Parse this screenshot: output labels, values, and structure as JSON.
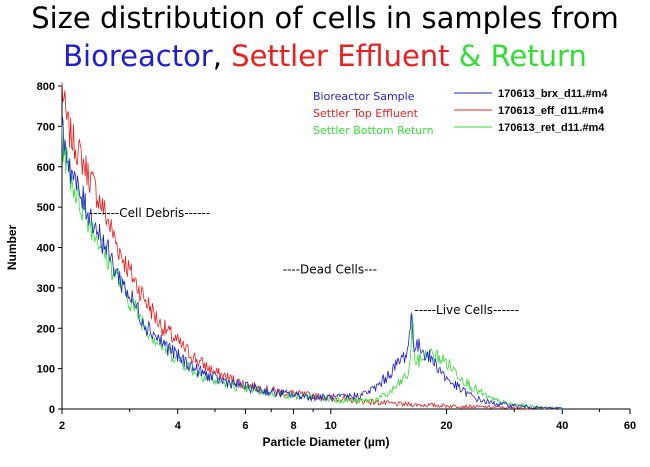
{
  "title": {
    "line1": "Size distribution of cells in samples from",
    "part_bioreactor": "Bioreactor",
    "sep1": ", ",
    "part_effluent": "Settler Effluent",
    "sep2": " & ",
    "part_return": "Return"
  },
  "colors": {
    "bioreactor": "#1f1fd0",
    "effluent": "#e82020",
    "return": "#33dd33"
  },
  "chart_data": {
    "type": "line",
    "title": "Size distribution of cells in samples from Bioreactor, Settler Effluent & Return",
    "xlabel": "Particle Diameter (µm)",
    "ylabel": "Number",
    "xscale": "log",
    "xlim": [
      2,
      60
    ],
    "ylim": [
      0,
      800
    ],
    "xticks": [
      2,
      4,
      6,
      8,
      10,
      20,
      40,
      60
    ],
    "yticks": [
      0,
      100,
      200,
      300,
      400,
      500,
      600,
      700,
      800
    ],
    "annotations": [
      {
        "text": "-------Cell Debris------",
        "x": 2.35,
        "y": 485
      },
      {
        "text": "----Dead Cells---",
        "x": 7.5,
        "y": 345
      },
      {
        "text": "-----Live Cells------",
        "x": 16.5,
        "y": 245
      }
    ],
    "legend_colored": [
      "Bioreactor Sample",
      "Settler Top Effluent",
      "Settler Bottom Return"
    ],
    "legend_position": "top-right",
    "series": [
      {
        "name": "170613_brx_d11.#m4",
        "key": "bioreactor",
        "points": [
          [
            2,
            690
          ],
          [
            2.1,
            600
          ],
          [
            2.2,
            540
          ],
          [
            2.4,
            470
          ],
          [
            2.6,
            400
          ],
          [
            2.8,
            330
          ],
          [
            3,
            280
          ],
          [
            3.3,
            210
          ],
          [
            3.6,
            170
          ],
          [
            4,
            130
          ],
          [
            4.5,
            95
          ],
          [
            5,
            75
          ],
          [
            6,
            55
          ],
          [
            7,
            42
          ],
          [
            8,
            35
          ],
          [
            9,
            30
          ],
          [
            10,
            28
          ],
          [
            11,
            30
          ],
          [
            12,
            35
          ],
          [
            13,
            50
          ],
          [
            14,
            80
          ],
          [
            15,
            115
          ],
          [
            15.8,
            140
          ],
          [
            16,
            180
          ],
          [
            16.2,
            230
          ],
          [
            16.5,
            150
          ],
          [
            17,
            155
          ],
          [
            18,
            130
          ],
          [
            19,
            105
          ],
          [
            20,
            75
          ],
          [
            22,
            45
          ],
          [
            24,
            25
          ],
          [
            26,
            15
          ],
          [
            30,
            8
          ],
          [
            35,
            3
          ],
          [
            40,
            1
          ]
        ]
      },
      {
        "name": "170613_eff_d11.#m4",
        "key": "effluent",
        "points": [
          [
            2,
            800
          ],
          [
            2.05,
            720
          ],
          [
            2.1,
            680
          ],
          [
            2.2,
            640
          ],
          [
            2.4,
            560
          ],
          [
            2.6,
            480
          ],
          [
            2.8,
            400
          ],
          [
            3,
            340
          ],
          [
            3.3,
            270
          ],
          [
            3.6,
            210
          ],
          [
            4,
            165
          ],
          [
            4.5,
            120
          ],
          [
            5,
            90
          ],
          [
            6,
            60
          ],
          [
            7,
            45
          ],
          [
            8,
            38
          ],
          [
            9,
            32
          ],
          [
            10,
            28
          ],
          [
            12,
            20
          ],
          [
            15,
            12
          ],
          [
            20,
            8
          ],
          [
            25,
            5
          ],
          [
            30,
            3
          ],
          [
            40,
            1
          ]
        ]
      },
      {
        "name": "170613_ret_d11.#m4",
        "key": "return",
        "points": [
          [
            2,
            660
          ],
          [
            2.1,
            580
          ],
          [
            2.2,
            520
          ],
          [
            2.4,
            450
          ],
          [
            2.6,
            380
          ],
          [
            2.8,
            320
          ],
          [
            3,
            270
          ],
          [
            3.3,
            205
          ],
          [
            3.6,
            160
          ],
          [
            4,
            125
          ],
          [
            4.5,
            90
          ],
          [
            5,
            70
          ],
          [
            6,
            50
          ],
          [
            7,
            40
          ],
          [
            8,
            33
          ],
          [
            9,
            28
          ],
          [
            10,
            25
          ],
          [
            12,
            20
          ],
          [
            13,
            22
          ],
          [
            14,
            35
          ],
          [
            15,
            60
          ],
          [
            16,
            90
          ],
          [
            16.3,
            225
          ],
          [
            16.6,
            110
          ],
          [
            17,
            120
          ],
          [
            17.5,
            130
          ],
          [
            18,
            135
          ],
          [
            19,
            130
          ],
          [
            20,
            115
          ],
          [
            21,
            95
          ],
          [
            22,
            75
          ],
          [
            24,
            45
          ],
          [
            26,
            25
          ],
          [
            28,
            15
          ],
          [
            30,
            10
          ],
          [
            35,
            4
          ],
          [
            40,
            2
          ]
        ]
      }
    ]
  }
}
